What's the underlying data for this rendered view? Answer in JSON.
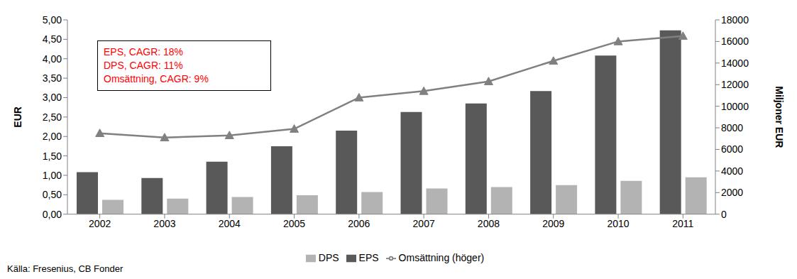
{
  "chart_data": {
    "type": "bar",
    "y_label": "EUR",
    "y2_label": "Miljoner EUR",
    "annotations": [
      "EPS, CAGR: 18%",
      "DPS, CAGR: 11%",
      "Omsättning, CAGR: 9%"
    ],
    "source": "Källa: Fresenius, CB Fonder",
    "categories": [
      "2002",
      "2003",
      "2004",
      "2005",
      "2006",
      "2007",
      "2008",
      "2009",
      "2010",
      "2011"
    ],
    "series": [
      {
        "name": "EPS",
        "type": "bar",
        "color": "#595959",
        "values": [
          1.08,
          0.93,
          1.35,
          1.75,
          2.15,
          2.63,
          2.85,
          3.17,
          4.08,
          4.73
        ]
      },
      {
        "name": "DPS",
        "type": "bar",
        "color": "#b3b3b3",
        "values": [
          0.37,
          0.4,
          0.44,
          0.49,
          0.57,
          0.66,
          0.7,
          0.75,
          0.86,
          0.95
        ]
      },
      {
        "name": "Omsättning (höger)",
        "type": "line",
        "axis": "y2",
        "color": "#808080",
        "marker": "triangle",
        "line_style": "solid",
        "values": [
          7500,
          7100,
          7300,
          7900,
          10800,
          11400,
          12300,
          14200,
          16000,
          16500
        ]
      }
    ],
    "ylim": [
      0,
      5
    ],
    "yticks": [
      {
        "value": 0,
        "label": "0,00"
      },
      {
        "value": 0.5,
        "label": "0,50"
      },
      {
        "value": 1,
        "label": "1,00"
      },
      {
        "value": 1.5,
        "label": "1,50"
      },
      {
        "value": 2,
        "label": "2,00"
      },
      {
        "value": 2.5,
        "label": "2,50"
      },
      {
        "value": 3,
        "label": "3,00"
      },
      {
        "value": 3.5,
        "label": "3,50"
      },
      {
        "value": 4,
        "label": "4,00"
      },
      {
        "value": 4.5,
        "label": "4,50"
      },
      {
        "value": 5,
        "label": "5,00"
      }
    ],
    "y2lim": [
      0,
      18000
    ],
    "y2ticks": [
      0,
      2000,
      4000,
      6000,
      8000,
      10000,
      12000,
      14000,
      16000,
      18000
    ],
    "grid": false,
    "legend": "bottom"
  }
}
